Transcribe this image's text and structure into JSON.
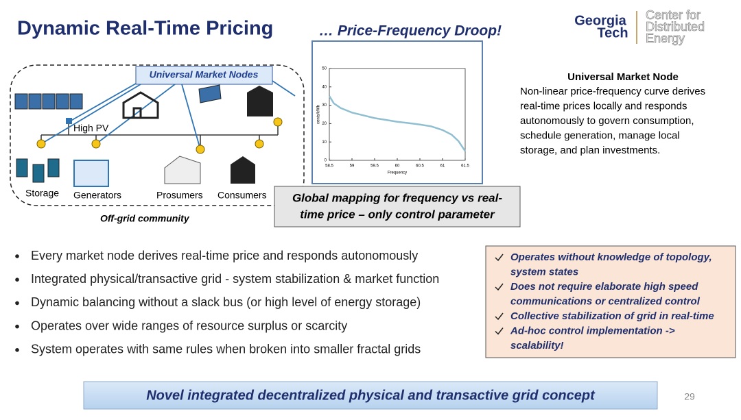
{
  "header": {
    "title": "Dynamic Real-Time Pricing",
    "subtitle": "… Price-Frequency Droop!",
    "logo_left": [
      "Georgia",
      "Tech"
    ],
    "logo_right": [
      "Center for",
      "Distributed",
      "Energy"
    ]
  },
  "diagram": {
    "market_nodes": "Universal Market Nodes",
    "high_pv": "High PV",
    "storage": "Storage",
    "generators": "Generators",
    "prosumers": "Prosumers",
    "consumers": "Consumers",
    "community": "Off-grid community"
  },
  "chart_data": {
    "type": "line",
    "x_label": "Frequency",
    "y_label": "cents/kWh",
    "color": "#8fbfd0",
    "x": [
      58.5,
      58.6,
      58.75,
      59,
      59.25,
      59.5,
      59.75,
      60,
      60.25,
      60.5,
      60.75,
      61,
      61.2,
      61.35,
      61.5
    ],
    "values": [
      35,
      31,
      28.5,
      26,
      24.5,
      23,
      22,
      21,
      20.3,
      19.5,
      18.5,
      16.5,
      14,
      10.5,
      5
    ],
    "xlim": [
      58.5,
      61.5
    ],
    "xticks": [
      58.5,
      59,
      59.5,
      60,
      60.5,
      61,
      61.5
    ],
    "ylim": [
      0,
      50
    ],
    "yticks": [
      0,
      10,
      20,
      30,
      40,
      50
    ]
  },
  "caption": [
    "Global  mapping for frequency vs real-",
    "time price – only control parameter"
  ],
  "node_info": {
    "title": "Universal Market Node",
    "lines": [
      "Non-linear price-frequency curve derives",
      "real-time prices locally and responds",
      "autonomously to govern consumption,",
      "schedule generation, manage local",
      "storage, and plan investments."
    ]
  },
  "bullets": [
    "Every market node derives real-time price and responds autonomously",
    "Integrated physical/transactive grid - system stabilization & market function",
    "Dynamic balancing without a slack bus (or high level of energy storage)",
    "Operates over wide ranges of resource surplus or scarcity",
    "System operates with same rules when broken into smaller fractal grids"
  ],
  "benefits": [
    [
      "Operates without knowledge of topology,",
      "system states"
    ],
    [
      "Does not require elaborate high speed",
      "communications or centralized control"
    ],
    [
      "Collective stabilization of grid in real-time"
    ],
    [
      "Ad-hoc control implementation ->",
      "scalability!"
    ]
  ],
  "banner": "Novel integrated decentralized physical and transactive grid concept",
  "page_number": "29"
}
